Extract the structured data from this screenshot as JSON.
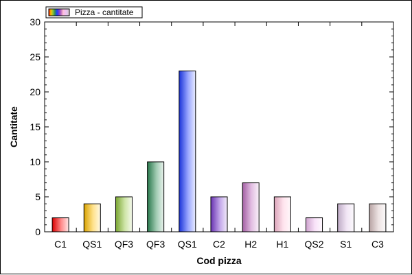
{
  "chart_data": {
    "type": "bar",
    "title": "",
    "xlabel": "Cod pizza",
    "ylabel": "Cantitate",
    "categories": [
      "C1",
      "QS1",
      "QF3",
      "QF3",
      "QS1",
      "C2",
      "H2",
      "H1",
      "QS2",
      "S1",
      "C3"
    ],
    "series": [
      {
        "name": "Pizza - cantitate",
        "values": [
          2,
          4,
          5,
          10,
          23,
          5,
          7,
          5,
          2,
          4,
          4
        ]
      }
    ],
    "ylim": [
      0,
      30
    ],
    "yticks": [
      0,
      5,
      10,
      15,
      20,
      25,
      30
    ],
    "grid": false,
    "legend_position": "top-left",
    "bar_colors": [
      "#ff0000",
      "#ffbf00",
      "#8fc33a",
      "#2e8b57",
      "#1e3cff",
      "#7a3cd0",
      "#c070c0",
      "#ffc0d8",
      "#f2c0f2",
      "#e0c8e8",
      "#d8c0c0"
    ]
  }
}
